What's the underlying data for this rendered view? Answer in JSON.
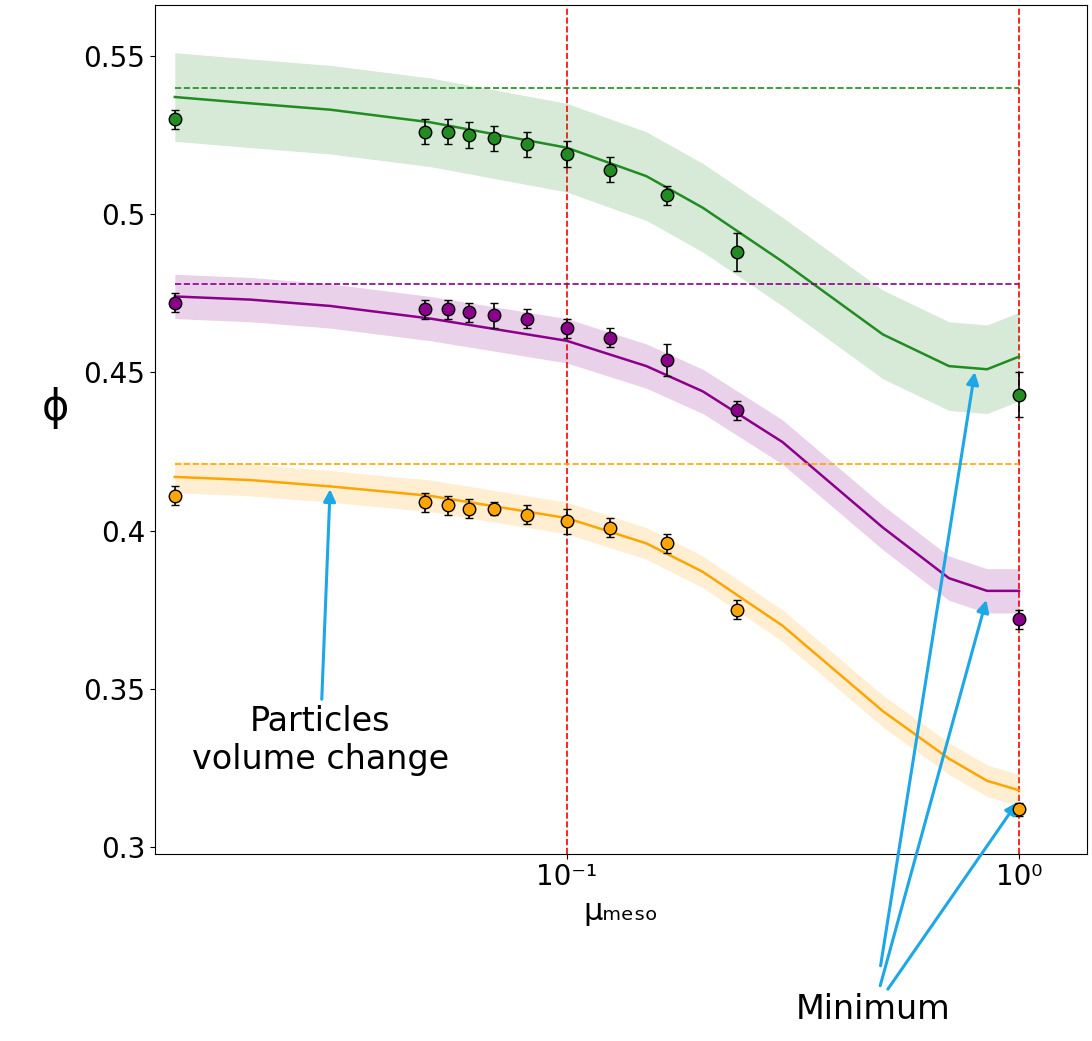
{
  "chart_data": {
    "type": "scatter",
    "x_label": "μₘₑₛₒ",
    "y_label": "ϕ",
    "log": "x",
    "xlim": [
      0.0123,
      1.41
    ],
    "ylim": [
      0.298,
      0.566
    ],
    "xticks": [
      {
        "value": 0.1,
        "label": "10⁻¹"
      },
      {
        "value": 1.0,
        "label": "10⁰"
      }
    ],
    "yticks": [
      0.3,
      0.35,
      0.4,
      0.45,
      0.5,
      0.55
    ],
    "vlines": [
      0.1,
      1.0
    ],
    "x": [
      0.0136,
      0.0487,
      0.0546,
      0.0608,
      0.069,
      0.0816,
      0.1,
      0.1245,
      0.167,
      0.238,
      1.0
    ],
    "model_x": [
      0.0136,
      0.02,
      0.03,
      0.05,
      0.1,
      0.15,
      0.2,
      0.3,
      0.5,
      0.7,
      0.85,
      1.0
    ],
    "series": [
      {
        "color": "#228b22",
        "marker": "o",
        "values": [
          0.53,
          0.526,
          0.526,
          0.525,
          0.524,
          0.522,
          0.519,
          0.514,
          0.506,
          0.488,
          0.443
        ],
        "errors": [
          0.003,
          0.004,
          0.004,
          0.004,
          0.004,
          0.004,
          0.004,
          0.004,
          0.003,
          0.006,
          0.007
        ],
        "model": [
          0.537,
          0.535,
          0.533,
          0.529,
          0.521,
          0.512,
          0.502,
          0.485,
          0.462,
          0.452,
          0.451,
          0.455
        ],
        "band": 0.014,
        "reference": 0.54
      },
      {
        "color": "#8b008b",
        "marker": "o",
        "values": [
          0.472,
          0.47,
          0.47,
          0.469,
          0.468,
          0.467,
          0.464,
          0.461,
          0.454,
          0.438,
          0.372
        ],
        "errors": [
          0.003,
          0.003,
          0.003,
          0.003,
          0.004,
          0.003,
          0.003,
          0.003,
          0.005,
          0.003,
          0.003
        ],
        "model": [
          0.474,
          0.473,
          0.471,
          0.467,
          0.46,
          0.452,
          0.444,
          0.428,
          0.401,
          0.385,
          0.381,
          0.381
        ],
        "band": 0.007,
        "reference": 0.478
      },
      {
        "color": "#ffa500",
        "marker": "o",
        "values": [
          0.411,
          0.409,
          0.408,
          0.407,
          0.407,
          0.405,
          0.403,
          0.401,
          0.396,
          0.375,
          0.312
        ],
        "errors": [
          0.003,
          0.003,
          0.003,
          0.003,
          0.002,
          0.003,
          0.004,
          0.003,
          0.003,
          0.003,
          0.002
        ],
        "model": [
          0.417,
          0.416,
          0.414,
          0.411,
          0.404,
          0.396,
          0.387,
          0.37,
          0.343,
          0.328,
          0.321,
          0.318
        ],
        "band": 0.005,
        "reference": 0.421
      }
    ],
    "annotations": [
      {
        "text": "Particles\nvolume change",
        "text_at": [
          0.0285,
          0.345
        ],
        "points": [
          [
            0.03,
            0.414
          ]
        ]
      },
      {
        "text": "Minimum",
        "points": [
          [
            0.8,
            0.451
          ],
          [
            0.85,
            0.379
          ],
          [
            1.0,
            0.315
          ]
        ]
      }
    ]
  }
}
